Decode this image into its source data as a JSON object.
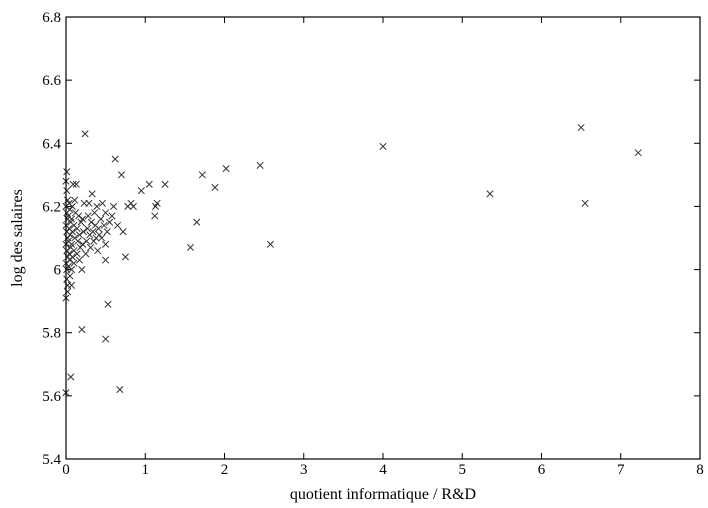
{
  "chart_data": {
    "type": "scatter",
    "title": "",
    "xlabel": "quotient informatique / R&D",
    "ylabel": "log des salaires",
    "xlim": [
      0,
      8
    ],
    "ylim": [
      5.4,
      6.8
    ],
    "xticks": [
      0,
      1,
      2,
      3,
      4,
      5,
      6,
      7,
      8
    ],
    "yticks": [
      5.4,
      5.6,
      5.8,
      6.0,
      6.2,
      6.4,
      6.6,
      6.8
    ],
    "xtick_labels": [
      "0",
      "1",
      "2",
      "3",
      "4",
      "5",
      "6",
      "7",
      "8"
    ],
    "ytick_labels": [
      "5.4",
      "5.6",
      "5.8",
      "6",
      "6.2",
      "6.4",
      "6.6",
      "6.8"
    ],
    "grid": false,
    "legend": "none",
    "marker": "x",
    "marker_color": "#333333",
    "series": [
      {
        "points": [
          [
            0.0,
            5.61
          ],
          [
            0.02,
            5.95
          ],
          [
            0.01,
            6.0
          ],
          [
            0.0,
            6.02
          ],
          [
            0.02,
            6.04
          ],
          [
            0.01,
            6.06
          ],
          [
            0.0,
            6.08
          ],
          [
            0.02,
            6.1
          ],
          [
            0.01,
            6.12
          ],
          [
            0.0,
            6.14
          ],
          [
            0.02,
            6.16
          ],
          [
            0.01,
            6.18
          ],
          [
            0.0,
            6.2
          ],
          [
            0.02,
            6.22
          ],
          [
            0.01,
            6.25
          ],
          [
            0.0,
            6.28
          ],
          [
            0.01,
            6.31
          ],
          [
            0.0,
            5.91
          ],
          [
            0.02,
            5.93
          ],
          [
            0.01,
            5.97
          ],
          [
            0.03,
            6.01
          ],
          [
            0.04,
            6.05
          ],
          [
            0.03,
            6.09
          ],
          [
            0.04,
            6.13
          ],
          [
            0.03,
            6.17
          ],
          [
            0.04,
            6.21
          ],
          [
            0.05,
            5.98
          ],
          [
            0.05,
            6.03
          ],
          [
            0.06,
            6.07
          ],
          [
            0.05,
            6.11
          ],
          [
            0.06,
            6.15
          ],
          [
            0.05,
            6.19
          ],
          [
            0.06,
            5.66
          ],
          [
            0.07,
            5.95
          ],
          [
            0.07,
            6.0
          ],
          [
            0.08,
            6.04
          ],
          [
            0.07,
            6.08
          ],
          [
            0.08,
            6.12
          ],
          [
            0.07,
            6.16
          ],
          [
            0.08,
            6.2
          ],
          [
            0.09,
            6.27
          ],
          [
            0.1,
            6.02
          ],
          [
            0.1,
            6.06
          ],
          [
            0.11,
            6.1
          ],
          [
            0.1,
            6.14
          ],
          [
            0.12,
            6.18
          ],
          [
            0.11,
            6.22
          ],
          [
            0.13,
            6.27
          ],
          [
            0.14,
            6.05
          ],
          [
            0.15,
            6.09
          ],
          [
            0.14,
            6.13
          ],
          [
            0.16,
            6.17
          ],
          [
            0.17,
            6.03
          ],
          [
            0.18,
            6.07
          ],
          [
            0.17,
            6.11
          ],
          [
            0.19,
            6.15
          ],
          [
            0.2,
            6.0
          ],
          [
            0.21,
            6.08
          ],
          [
            0.22,
            6.12
          ],
          [
            0.21,
            6.16
          ],
          [
            0.23,
            6.21
          ],
          [
            0.2,
            5.81
          ],
          [
            0.24,
            6.43
          ],
          [
            0.25,
            6.05
          ],
          [
            0.26,
            6.09
          ],
          [
            0.27,
            6.13
          ],
          [
            0.28,
            6.17
          ],
          [
            0.29,
            6.21
          ],
          [
            0.3,
            6.11
          ],
          [
            0.31,
            6.07
          ],
          [
            0.32,
            6.15
          ],
          [
            0.33,
            6.24
          ],
          [
            0.34,
            6.12
          ],
          [
            0.35,
            6.09
          ],
          [
            0.36,
            6.18
          ],
          [
            0.37,
            6.14
          ],
          [
            0.38,
            6.1
          ],
          [
            0.39,
            6.2
          ],
          [
            0.4,
            6.06
          ],
          [
            0.41,
            6.13
          ],
          [
            0.42,
            6.11
          ],
          [
            0.44,
            6.16
          ],
          [
            0.45,
            6.1
          ],
          [
            0.46,
            6.21
          ],
          [
            0.48,
            6.14
          ],
          [
            0.5,
            6.08
          ],
          [
            0.5,
            6.18
          ],
          [
            0.52,
            6.12
          ],
          [
            0.5,
            6.03
          ],
          [
            0.53,
            5.89
          ],
          [
            0.5,
            5.78
          ],
          [
            0.55,
            6.15
          ],
          [
            0.58,
            6.17
          ],
          [
            0.6,
            6.2
          ],
          [
            0.62,
            6.35
          ],
          [
            0.65,
            6.14
          ],
          [
            0.7,
            6.3
          ],
          [
            0.72,
            6.12
          ],
          [
            0.68,
            5.62
          ],
          [
            0.75,
            6.04
          ],
          [
            0.78,
            6.2
          ],
          [
            0.82,
            6.21
          ],
          [
            0.85,
            6.2
          ],
          [
            0.95,
            6.25
          ],
          [
            1.05,
            6.27
          ],
          [
            1.12,
            6.17
          ],
          [
            1.13,
            6.2
          ],
          [
            1.15,
            6.21
          ],
          [
            1.25,
            6.27
          ],
          [
            1.57,
            6.07
          ],
          [
            1.65,
            6.15
          ],
          [
            1.72,
            6.3
          ],
          [
            1.88,
            6.26
          ],
          [
            2.02,
            6.32
          ],
          [
            2.45,
            6.33
          ],
          [
            2.58,
            6.08
          ],
          [
            4.0,
            6.39
          ],
          [
            5.35,
            6.24
          ],
          [
            6.5,
            6.45
          ],
          [
            6.55,
            6.21
          ],
          [
            7.22,
            6.37
          ]
        ]
      }
    ]
  }
}
